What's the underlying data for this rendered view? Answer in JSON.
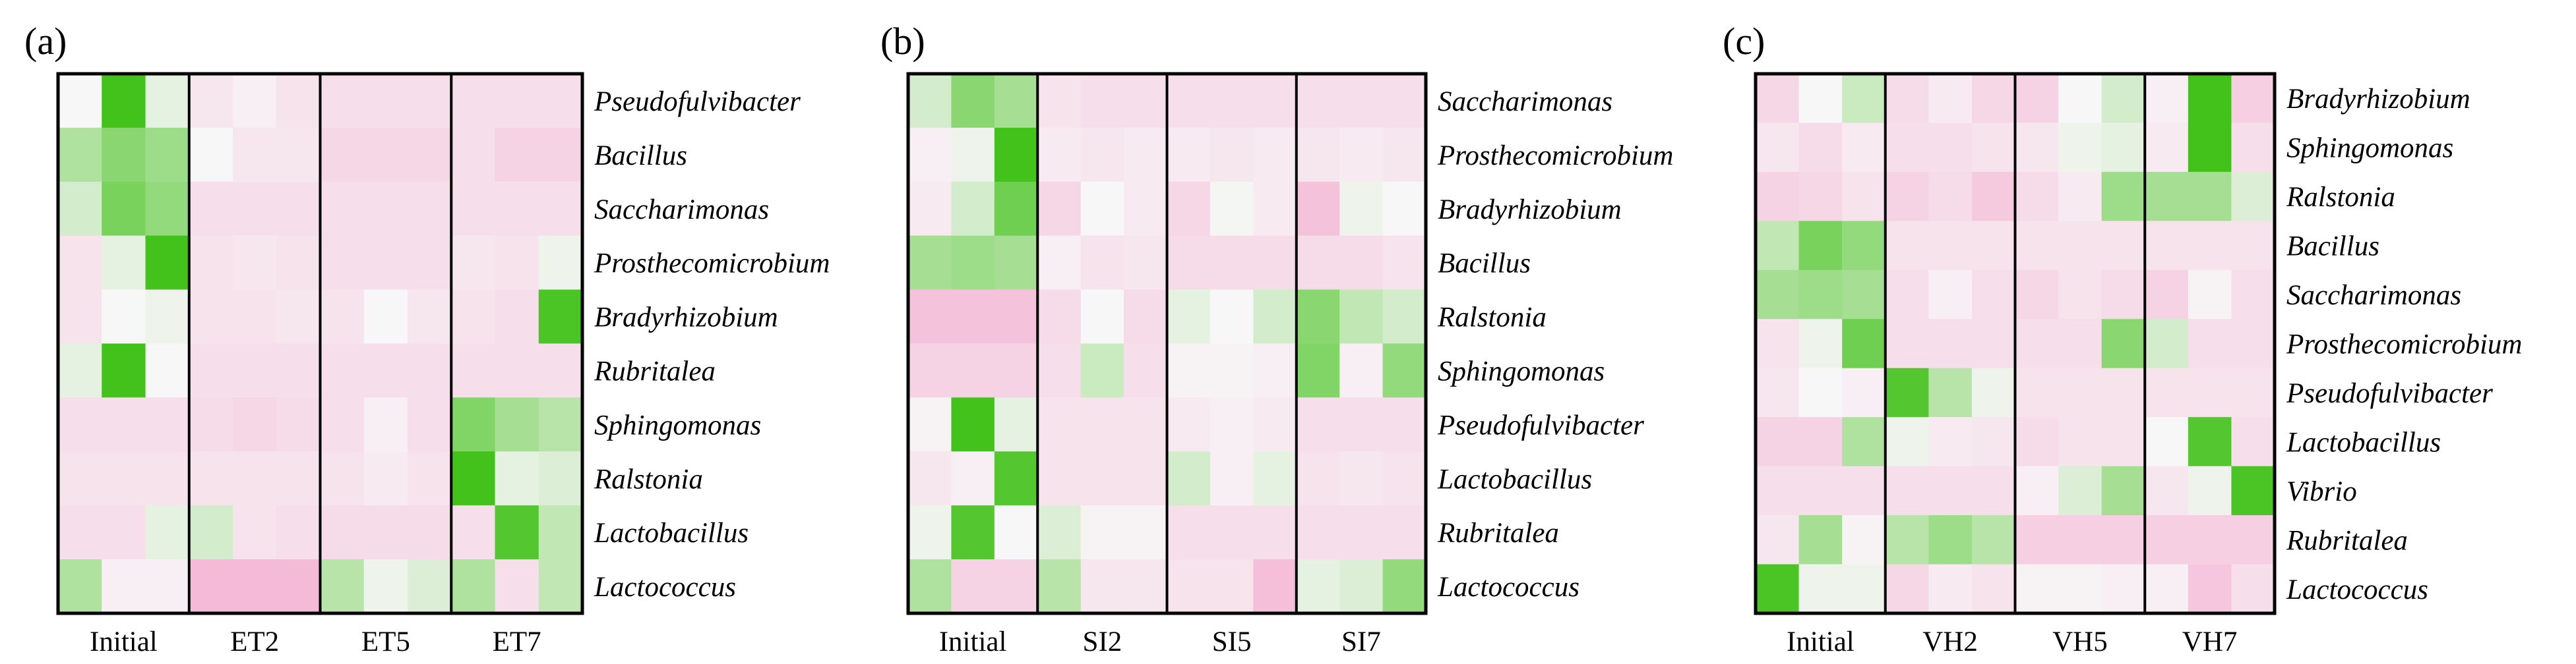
{
  "colors": {
    "low": "#f4a6cc",
    "mid": "#f7f7f7",
    "high": "#42c21a",
    "border": "#000000"
  },
  "color_scale": "row-normalized z-score, -1 (pink) to 0 (white) to 1 (green)",
  "chart_data": [
    {
      "type": "heatmap",
      "panel_label": "(a)",
      "groups": [
        "Initial",
        "ET2",
        "ET5",
        "ET7"
      ],
      "replicates_per_group": 3,
      "rows": [
        "Pseudofulvibacter",
        "Bacillus",
        "Saccharimonas",
        "Prosthecomicrobium",
        "Bradyrhizobium",
        "Rubritalea",
        "Sphingomonas",
        "Ralstonia",
        "Lactobacillus",
        "Lactococcus"
      ],
      "values": [
        [
          0.0,
          1.0,
          0.1,
          -0.2,
          -0.1,
          -0.25,
          -0.3,
          -0.3,
          -0.3,
          -0.3,
          -0.3,
          -0.3
        ],
        [
          0.4,
          0.6,
          0.5,
          0.0,
          -0.2,
          -0.2,
          -0.4,
          -0.4,
          -0.4,
          -0.3,
          -0.45,
          -0.45
        ],
        [
          0.2,
          0.7,
          0.55,
          -0.3,
          -0.3,
          -0.3,
          -0.3,
          -0.3,
          -0.3,
          -0.3,
          -0.3,
          -0.3
        ],
        [
          -0.25,
          0.1,
          1.0,
          -0.25,
          -0.2,
          -0.25,
          -0.3,
          -0.3,
          -0.3,
          -0.2,
          -0.25,
          0.05
        ],
        [
          -0.25,
          0.0,
          0.05,
          -0.25,
          -0.25,
          -0.2,
          -0.25,
          0.0,
          -0.2,
          -0.25,
          -0.3,
          0.95
        ],
        [
          0.1,
          1.0,
          0.0,
          -0.3,
          -0.3,
          -0.3,
          -0.3,
          -0.3,
          -0.3,
          -0.3,
          -0.3,
          -0.3
        ],
        [
          -0.3,
          -0.3,
          -0.3,
          -0.35,
          -0.4,
          -0.35,
          -0.3,
          -0.1,
          -0.3,
          0.65,
          0.45,
          0.35
        ],
        [
          -0.25,
          -0.25,
          -0.25,
          -0.25,
          -0.25,
          -0.25,
          -0.25,
          -0.15,
          -0.25,
          1.0,
          0.1,
          0.15
        ],
        [
          -0.3,
          -0.3,
          0.1,
          0.2,
          -0.25,
          -0.3,
          -0.35,
          -0.35,
          -0.35,
          -0.3,
          0.9,
          0.3
        ],
        [
          0.4,
          -0.1,
          -0.1,
          -0.75,
          -0.75,
          -0.75,
          0.35,
          0.05,
          0.15,
          0.4,
          -0.3,
          0.3
        ]
      ]
    },
    {
      "type": "heatmap",
      "panel_label": "(b)",
      "groups": [
        "Initial",
        "SI2",
        "SI5",
        "SI7"
      ],
      "replicates_per_group": 3,
      "rows": [
        "Saccharimonas",
        "Prosthecomicrobium",
        "Bradyrhizobium",
        "Bacillus",
        "Ralstonia",
        "Sphingomonas",
        "Pseudofulvibacter",
        "Lactobacillus",
        "Rubritalea",
        "Lactococcus"
      ],
      "values": [
        [
          0.2,
          0.6,
          0.45,
          -0.25,
          -0.3,
          -0.3,
          -0.3,
          -0.3,
          -0.3,
          -0.3,
          -0.3,
          -0.3
        ],
        [
          -0.1,
          0.05,
          1.0,
          -0.15,
          -0.2,
          -0.15,
          -0.15,
          -0.2,
          -0.15,
          -0.2,
          -0.15,
          -0.2
        ],
        [
          -0.15,
          0.2,
          0.75,
          -0.4,
          0.0,
          -0.15,
          -0.4,
          0.02,
          -0.15,
          -0.65,
          0.05,
          0.0
        ],
        [
          0.45,
          0.5,
          0.45,
          -0.1,
          -0.25,
          -0.2,
          -0.35,
          -0.35,
          -0.35,
          -0.35,
          -0.35,
          -0.25
        ],
        [
          -0.65,
          -0.65,
          -0.65,
          -0.35,
          0.0,
          -0.35,
          0.1,
          0.0,
          0.2,
          0.6,
          0.3,
          0.2
        ],
        [
          -0.45,
          -0.45,
          -0.45,
          -0.3,
          0.25,
          -0.3,
          -0.05,
          -0.05,
          -0.1,
          0.65,
          -0.1,
          0.55
        ],
        [
          -0.05,
          1.0,
          0.1,
          -0.25,
          -0.25,
          -0.25,
          -0.15,
          -0.1,
          -0.15,
          -0.3,
          -0.3,
          -0.3
        ],
        [
          -0.2,
          -0.1,
          0.9,
          -0.25,
          -0.25,
          -0.25,
          0.2,
          -0.1,
          0.1,
          -0.25,
          -0.2,
          -0.25
        ],
        [
          0.05,
          0.9,
          0.0,
          0.15,
          -0.05,
          -0.05,
          -0.3,
          -0.3,
          -0.3,
          -0.3,
          -0.3,
          -0.3
        ],
        [
          0.4,
          -0.45,
          -0.45,
          0.35,
          -0.2,
          -0.2,
          -0.25,
          -0.25,
          -0.7,
          0.1,
          0.15,
          0.55
        ]
      ]
    },
    {
      "type": "heatmap",
      "panel_label": "(c)",
      "groups": [
        "Initial",
        "VH2",
        "VH5",
        "VH7"
      ],
      "replicates_per_group": 3,
      "rows": [
        "Bradyrhizobium",
        "Sphingomonas",
        "Ralstonia",
        "Bacillus",
        "Saccharimonas",
        "Prosthecomicrobium",
        "Pseudofulvibacter",
        "Lactobacillus",
        "Vibrio",
        "Rubritalea",
        "Lactococcus"
      ],
      "values": [
        [
          -0.4,
          0.0,
          0.25,
          -0.35,
          -0.15,
          -0.4,
          -0.45,
          0.0,
          0.2,
          -0.1,
          1.0,
          -0.5
        ],
        [
          -0.2,
          -0.35,
          -0.15,
          -0.3,
          -0.3,
          -0.25,
          -0.2,
          0.05,
          0.1,
          -0.15,
          1.0,
          -0.3
        ],
        [
          -0.45,
          -0.4,
          -0.25,
          -0.45,
          -0.35,
          -0.55,
          -0.35,
          -0.15,
          0.5,
          0.45,
          0.45,
          0.15
        ],
        [
          0.3,
          0.7,
          0.55,
          -0.25,
          -0.25,
          -0.25,
          -0.25,
          -0.25,
          -0.25,
          -0.25,
          -0.25,
          -0.25
        ],
        [
          0.45,
          0.5,
          0.45,
          -0.3,
          -0.1,
          -0.3,
          -0.4,
          -0.25,
          -0.35,
          -0.45,
          -0.05,
          -0.3
        ],
        [
          -0.25,
          0.05,
          0.75,
          -0.3,
          -0.3,
          -0.3,
          -0.3,
          -0.3,
          0.6,
          0.2,
          -0.3,
          -0.3
        ],
        [
          -0.2,
          0.0,
          -0.1,
          0.9,
          0.35,
          0.05,
          -0.25,
          -0.25,
          -0.25,
          -0.25,
          -0.25,
          -0.25
        ],
        [
          -0.45,
          -0.45,
          0.4,
          0.05,
          -0.15,
          -0.2,
          -0.35,
          -0.25,
          -0.25,
          0.0,
          0.9,
          -0.3
        ],
        [
          -0.3,
          -0.3,
          -0.3,
          -0.3,
          -0.3,
          -0.3,
          -0.1,
          0.15,
          0.45,
          -0.2,
          0.05,
          0.95
        ],
        [
          -0.2,
          0.45,
          -0.05,
          0.35,
          0.5,
          0.35,
          -0.5,
          -0.5,
          -0.5,
          -0.5,
          -0.5,
          -0.5
        ],
        [
          0.95,
          0.05,
          0.05,
          -0.4,
          -0.15,
          -0.25,
          -0.05,
          -0.05,
          -0.1,
          -0.1,
          -0.6,
          -0.3
        ]
      ]
    }
  ]
}
